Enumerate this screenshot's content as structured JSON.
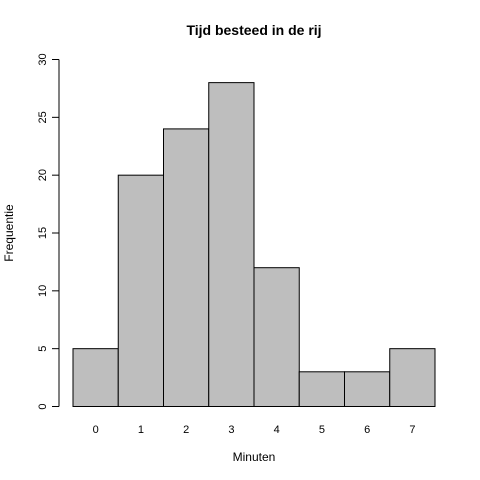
{
  "chart_data": {
    "type": "bar",
    "title": "Tijd besteed in de rij",
    "xlabel": "Minuten",
    "ylabel": "Frequentie",
    "categories": [
      "0",
      "1",
      "2",
      "3",
      "4",
      "5",
      "6",
      "7"
    ],
    "values": [
      5,
      20,
      24,
      28,
      12,
      3,
      3,
      5
    ],
    "ylim": [
      0,
      30
    ],
    "yticks": [
      0,
      5,
      10,
      15,
      20,
      25,
      30
    ],
    "grid": false,
    "colors": {
      "bar_fill": "#bebebe",
      "bar_stroke": "#000000"
    }
  }
}
